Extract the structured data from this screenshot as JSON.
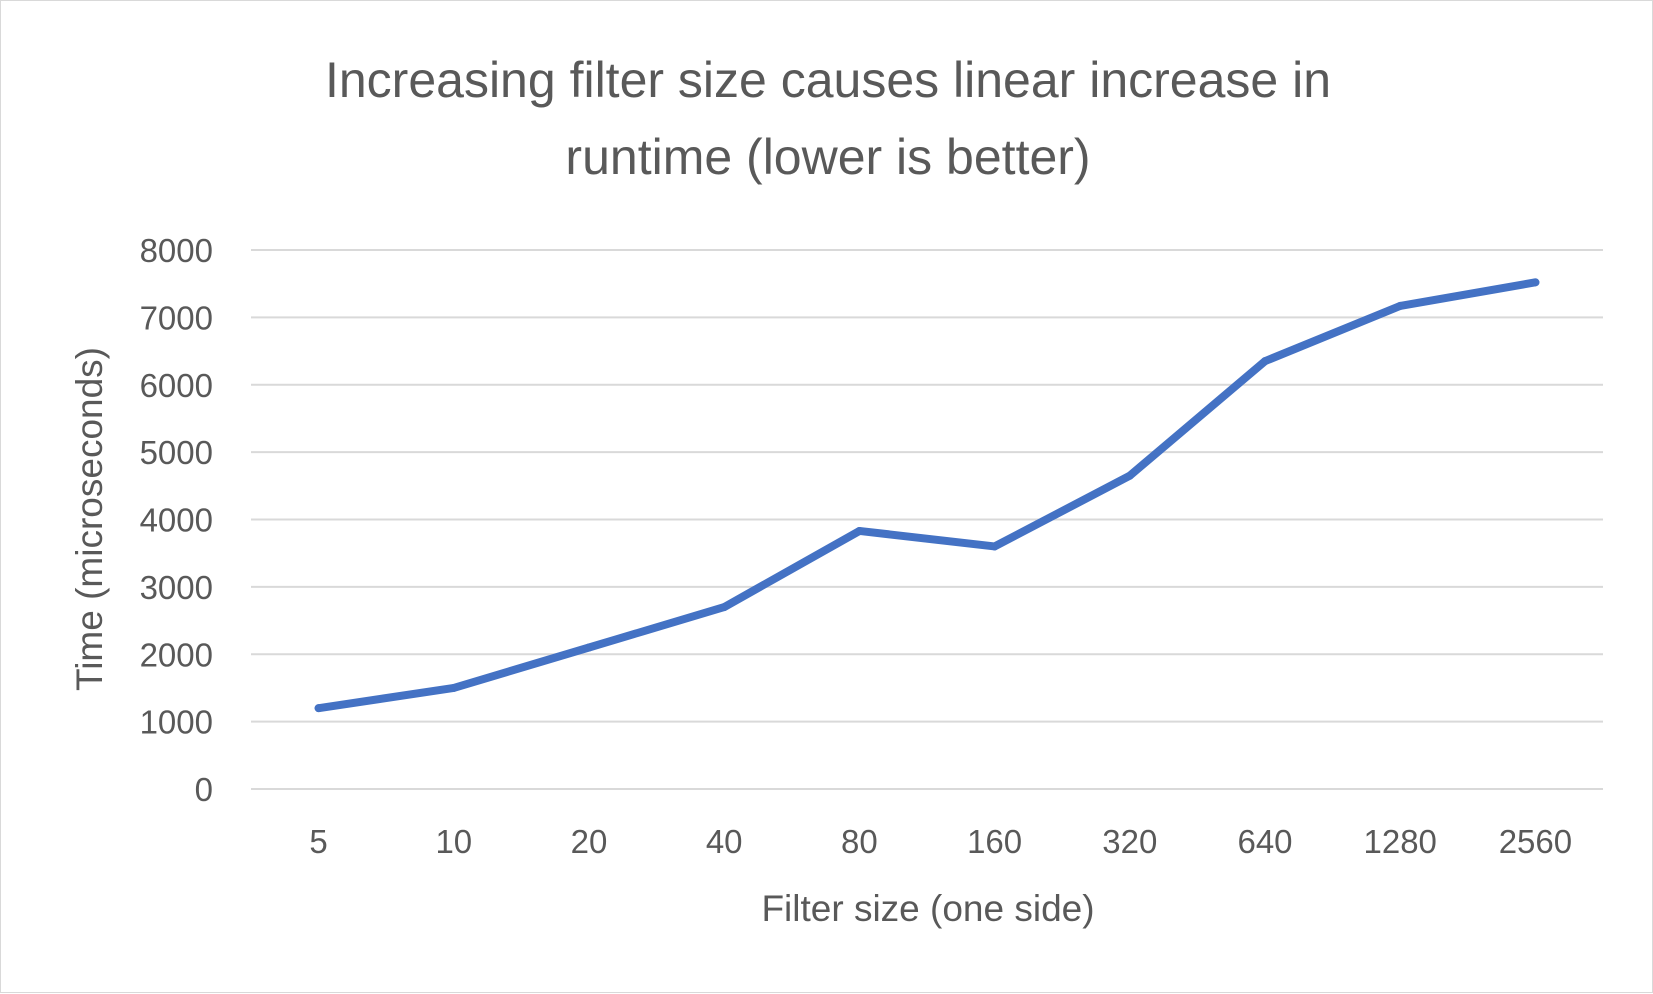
{
  "chart_data": {
    "type": "line",
    "title_lines": [
      "Increasing filter size causes linear increase in",
      "runtime (lower is better)"
    ],
    "xlabel": "Filter size (one side)",
    "ylabel": "Time (microseconds)",
    "categories": [
      "5",
      "10",
      "20",
      "40",
      "80",
      "160",
      "320",
      "640",
      "1280",
      "2560"
    ],
    "y_ticks": [
      "0",
      "1000",
      "2000",
      "3000",
      "4000",
      "5000",
      "6000",
      "7000",
      "8000"
    ],
    "ylim": [
      0,
      8000
    ],
    "grid": true,
    "legend": "none",
    "series": [
      {
        "color": "#4472c4",
        "values": [
          1200,
          1500,
          2100,
          2700,
          3830,
          3600,
          4650,
          6350,
          7170,
          7520
        ]
      }
    ]
  }
}
